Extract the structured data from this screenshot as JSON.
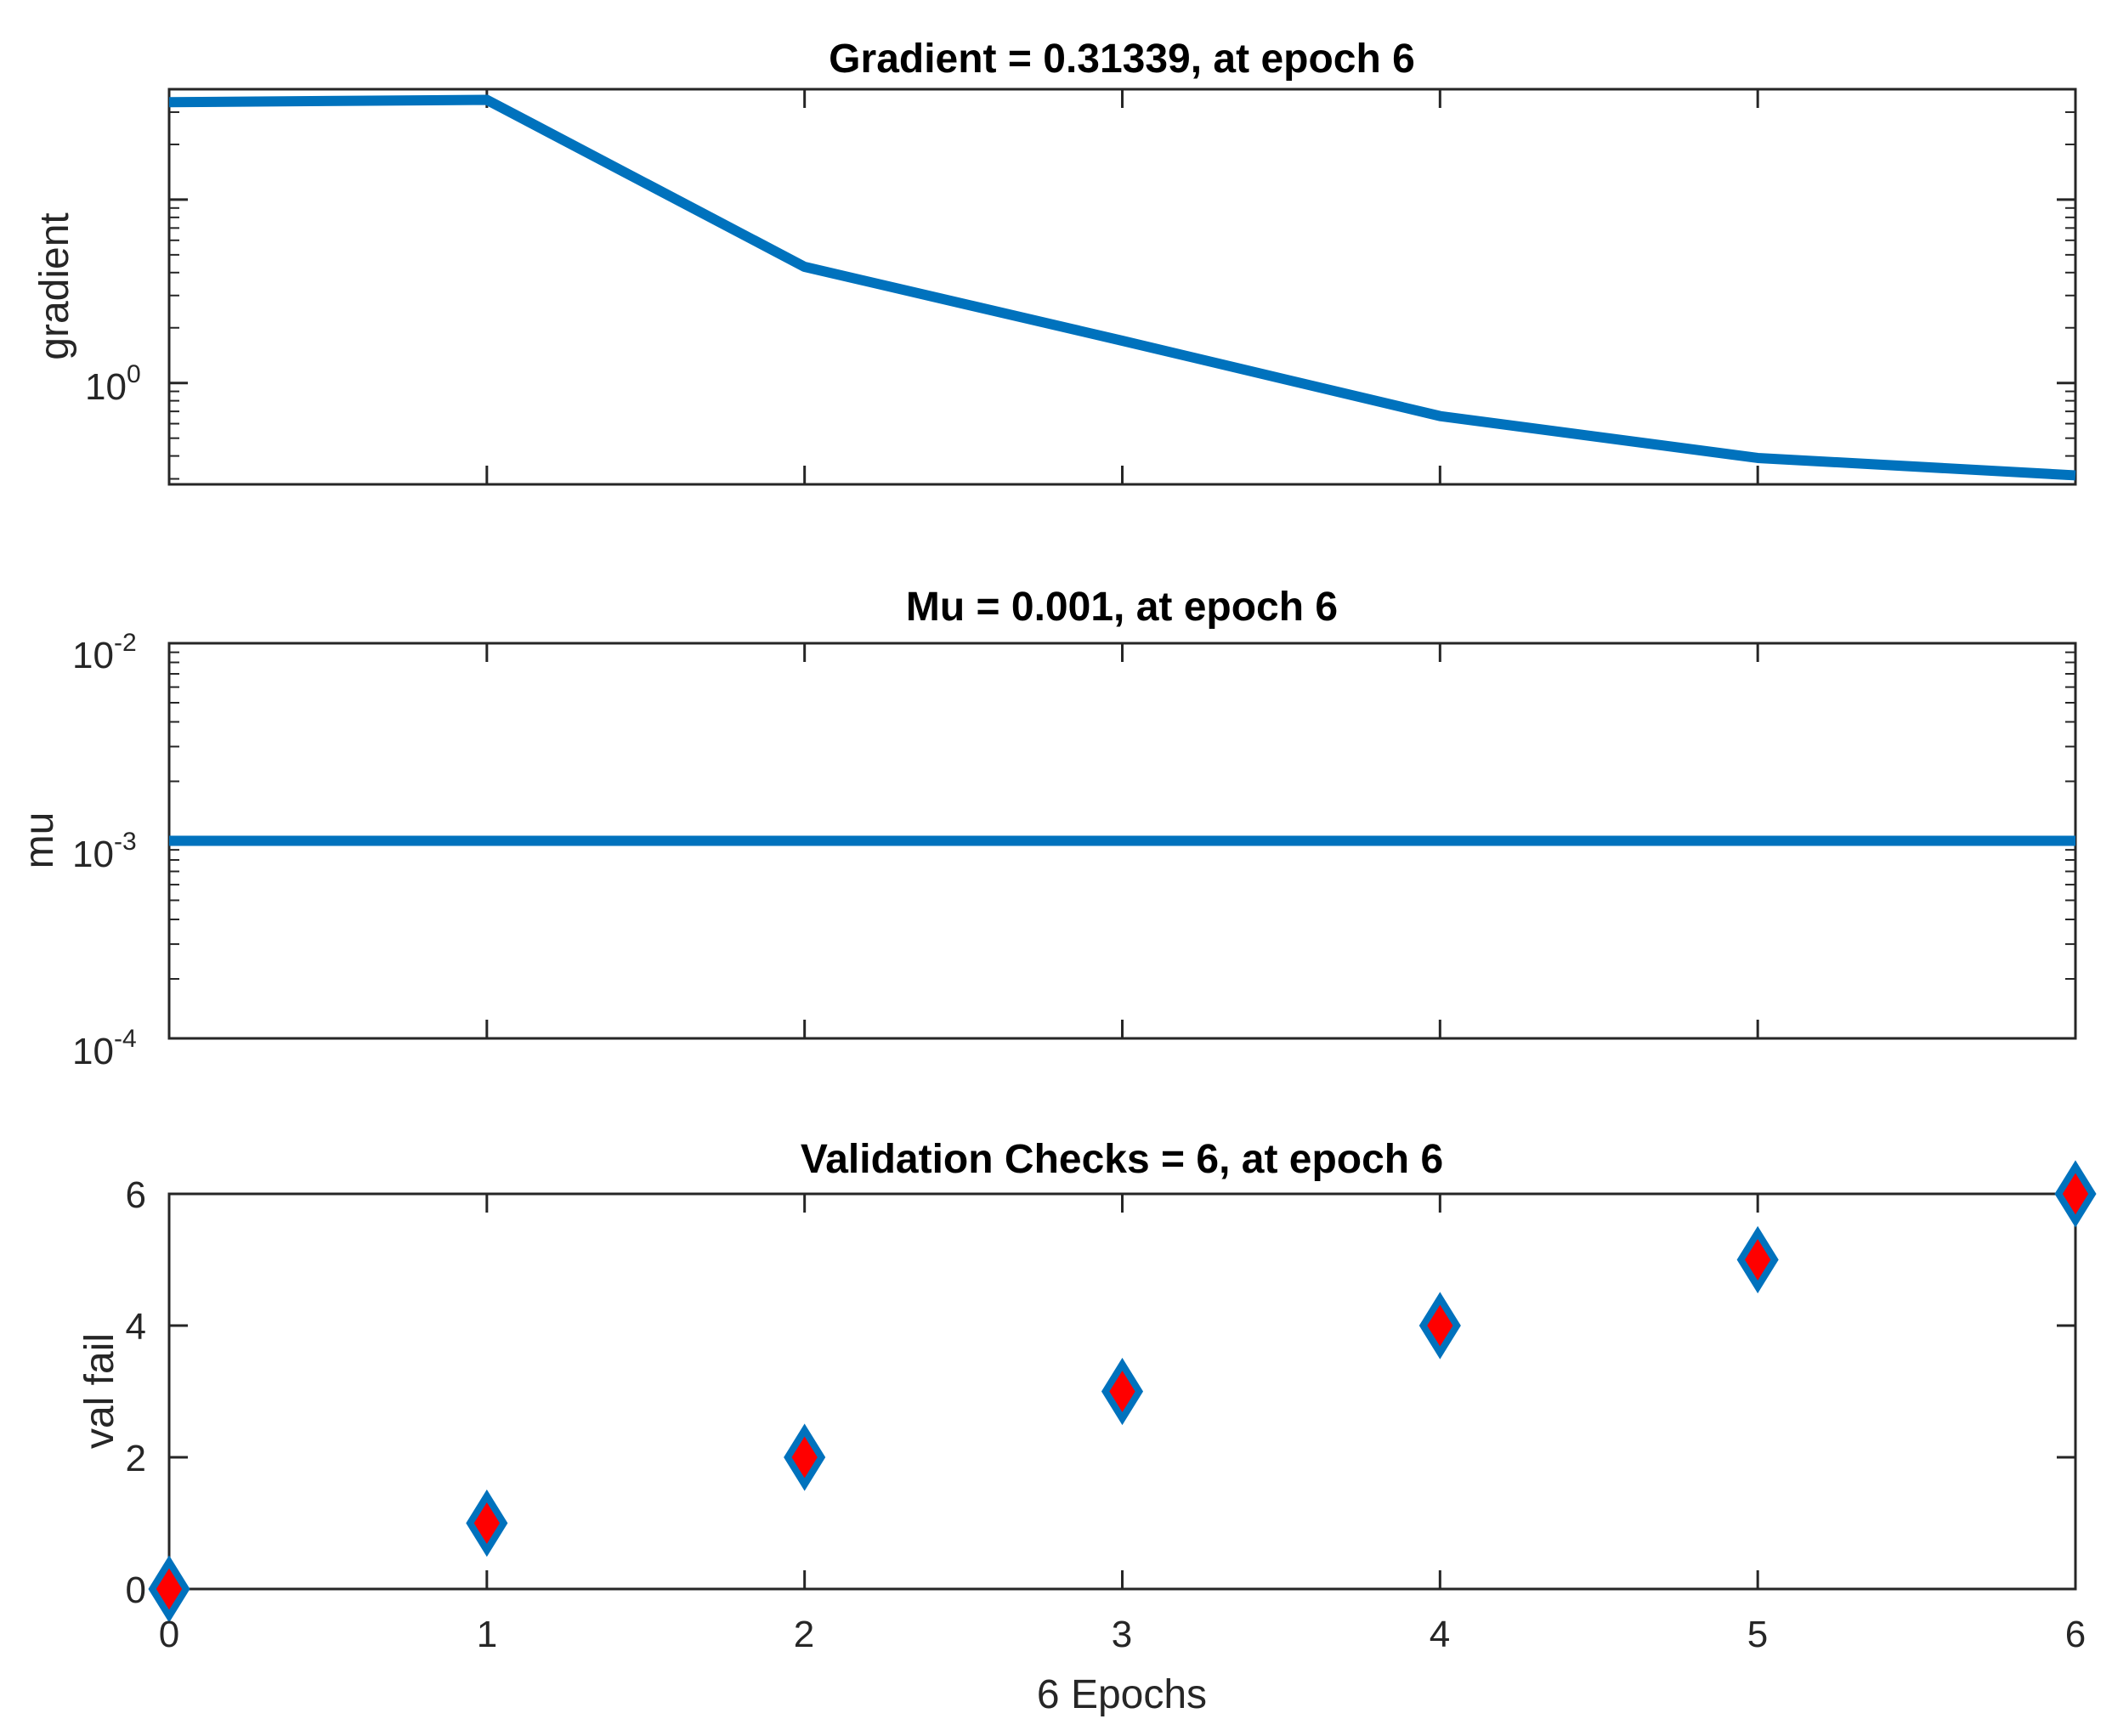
{
  "chart_data": [
    {
      "type": "line",
      "title": "Gradient = 0.31339, at epoch 6",
      "ylabel": "gradient",
      "xlabel": "",
      "yscale": "log",
      "xlim": [
        0,
        6
      ],
      "ylim": [
        0.28,
        40
      ],
      "y_ticks": [
        {
          "base": "10",
          "exp": "0"
        }
      ],
      "x": [
        0,
        1,
        2,
        3,
        4,
        5,
        6
      ],
      "series": [
        {
          "name": "gradient",
          "values": [
            34,
            35,
            4.3,
            1.7,
            0.66,
            0.39,
            0.31339
          ]
        }
      ],
      "color": "#0072BD"
    },
    {
      "type": "line",
      "title": "Mu = 0.001, at epoch 6",
      "ylabel": "mu",
      "xlabel": "",
      "yscale": "log",
      "xlim": [
        0,
        6
      ],
      "ylim": [
        0.0001,
        0.01
      ],
      "y_ticks": [
        {
          "base": "10",
          "exp": "-2"
        },
        {
          "base": "10",
          "exp": "-3"
        },
        {
          "base": "10",
          "exp": "-4"
        }
      ],
      "x": [
        0,
        1,
        2,
        3,
        4,
        5,
        6
      ],
      "series": [
        {
          "name": "mu",
          "values": [
            0.001,
            0.001,
            0.001,
            0.001,
            0.001,
            0.001,
            0.001
          ]
        }
      ],
      "color": "#0072BD"
    },
    {
      "type": "scatter",
      "title": "Validation Checks = 6, at epoch 6",
      "ylabel": "val fail",
      "xlabel": "6 Epochs",
      "yscale": "linear",
      "xlim": [
        0,
        6
      ],
      "ylim": [
        0,
        6
      ],
      "y_ticks": [
        "0",
        "2",
        "4",
        "6"
      ],
      "x_ticks": [
        "0",
        "1",
        "2",
        "3",
        "4",
        "5",
        "6"
      ],
      "x": [
        0,
        1,
        2,
        3,
        4,
        5,
        6
      ],
      "series": [
        {
          "name": "val fail",
          "values": [
            0,
            1,
            2,
            3,
            4,
            5,
            6
          ]
        }
      ],
      "marker": "diamond",
      "marker_face": "#FF0000",
      "marker_edge": "#0072BD"
    }
  ]
}
